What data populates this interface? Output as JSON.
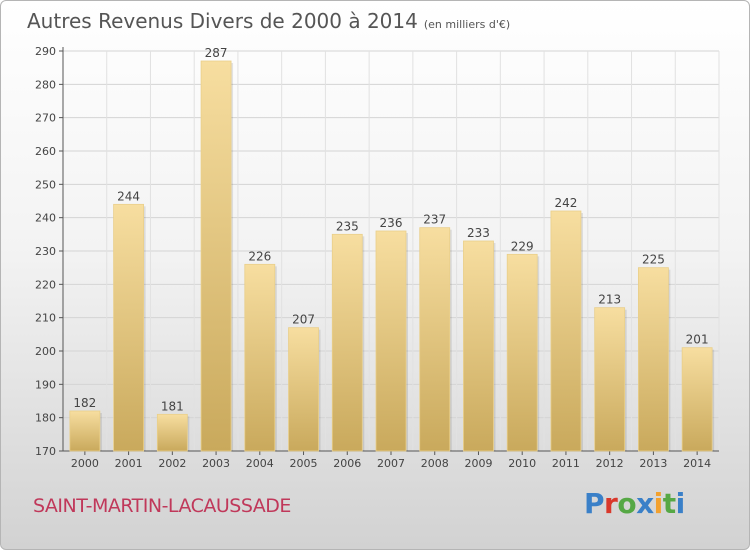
{
  "header": {
    "title": "Autres Revenus Divers de 2000 à 2014",
    "unit": "(en milliers d'€)"
  },
  "footer": {
    "place": "SAINT-MARTIN-LACAUSSADE",
    "logo_text": "Proxiti"
  },
  "colors": {
    "bar_light": "#f7dea0",
    "bar_dark": "#c9a95c",
    "place_text": "#c0385a",
    "logo": [
      "#3a80c8",
      "#d9382b",
      "#56a845",
      "#3a80c8",
      "#f2a12f",
      "#56a845",
      "#3a80c8"
    ]
  },
  "chart_data": {
    "type": "bar",
    "title": "Autres Revenus Divers de 2000 à 2014",
    "subtitle": "(en milliers d'€)",
    "categories": [
      "2000",
      "2001",
      "2002",
      "2003",
      "2004",
      "2005",
      "2006",
      "2007",
      "2008",
      "2009",
      "2010",
      "2011",
      "2012",
      "2013",
      "2014"
    ],
    "values": [
      182,
      244,
      181,
      287,
      226,
      207,
      235,
      236,
      237,
      233,
      229,
      242,
      213,
      225,
      201
    ],
    "ylim": [
      170,
      290
    ],
    "yticks": [
      170,
      180,
      190,
      200,
      210,
      220,
      230,
      240,
      250,
      260,
      270,
      280,
      290
    ],
    "grid": true,
    "data_labels": true
  }
}
